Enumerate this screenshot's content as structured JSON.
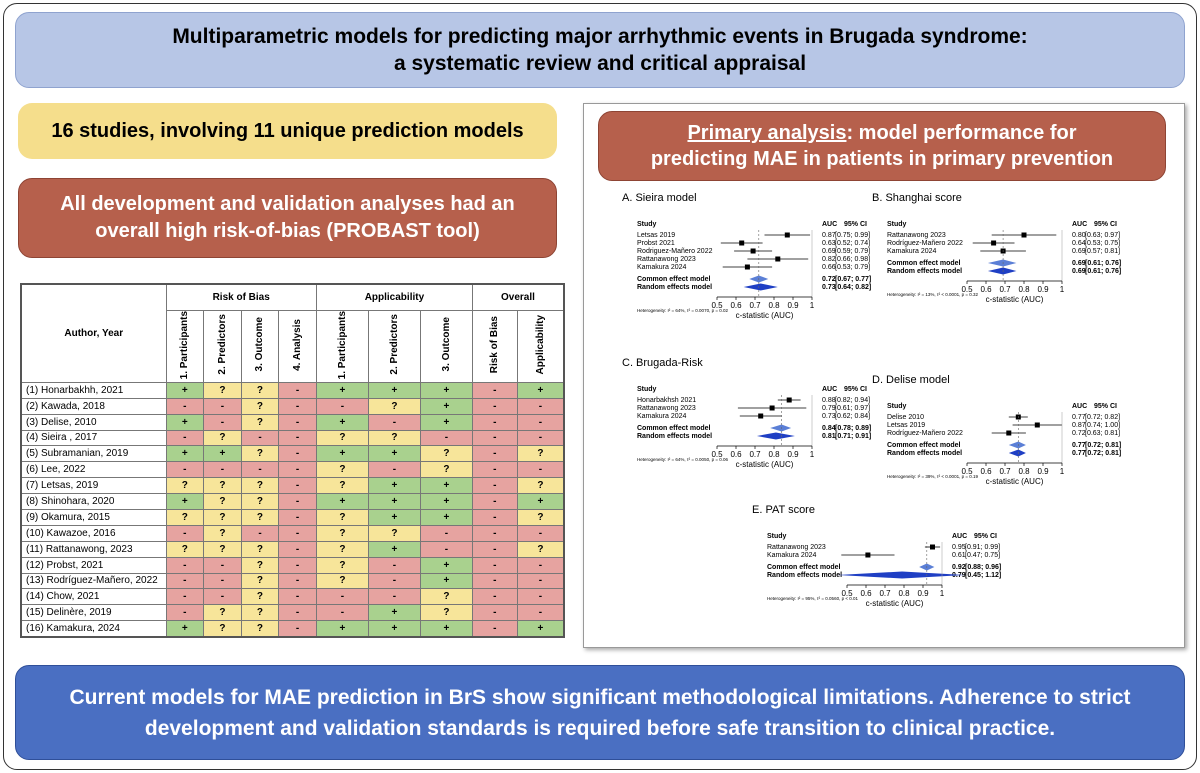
{
  "header": {
    "title_line1": "Multiparametric models for predicting major arrhythmic events in Brugada syndrome:",
    "title_line2": "a systematic review and critical appraisal"
  },
  "studies_box": "16 studies, involving 11 unique prediction models",
  "bias_box": "All development and validation analyses had an overall high risk-of-bias (PROBAST tool)",
  "table": {
    "author_header": "Author, Year",
    "groups": [
      "Risk of Bias",
      "Applicability",
      "Overall"
    ],
    "columns": [
      "1. Participants",
      "2. Predictors",
      "3. Outcome",
      "4. Analysis",
      "1. Participants",
      "2. Predictors",
      "3. Outcome",
      "Risk of Bias",
      "Applicability"
    ],
    "rows": [
      {
        "author": "(1) Honarbakhh, 2021",
        "cells": [
          "+",
          "?",
          "?",
          "-",
          "+",
          "+",
          "+",
          "-",
          "+"
        ]
      },
      {
        "author": "(2) Kawada, 2018",
        "cells": [
          "-",
          "-",
          "?",
          "-",
          "-",
          "?",
          "+",
          "-",
          "-"
        ]
      },
      {
        "author": "(3) Delise, 2010",
        "cells": [
          "+",
          "-",
          "?",
          "-",
          "+",
          "-",
          "+",
          "-",
          "-"
        ]
      },
      {
        "author": "(4) Sieira , 2017",
        "cells": [
          "-",
          "?",
          "-",
          "-",
          "?",
          "?",
          "-",
          "-",
          "-"
        ]
      },
      {
        "author": "(5) Subramanian, 2019",
        "cells": [
          "+",
          "+",
          "?",
          "-",
          "+",
          "+",
          "?",
          "-",
          "?"
        ]
      },
      {
        "author": "(6) Lee, 2022",
        "cells": [
          "-",
          "-",
          "-",
          "-",
          "?",
          "-",
          "?",
          "-",
          "-"
        ]
      },
      {
        "author": "(7) Letsas, 2019",
        "cells": [
          "?",
          "?",
          "?",
          "-",
          "?",
          "+",
          "+",
          "-",
          "?"
        ]
      },
      {
        "author": "(8) Shinohara, 2020",
        "cells": [
          "+",
          "?",
          "?",
          "-",
          "+",
          "+",
          "+",
          "-",
          "+"
        ]
      },
      {
        "author": "(9) Okamura, 2015",
        "cells": [
          "?",
          "?",
          "?",
          "-",
          "?",
          "+",
          "+",
          "-",
          "?"
        ]
      },
      {
        "author": "(10) Kawazoe, 2016",
        "cells": [
          "-",
          "?",
          "-",
          "-",
          "?",
          "?",
          "-",
          "-",
          "-"
        ]
      },
      {
        "author": "(11) Rattanawong, 2023",
        "cells": [
          "?",
          "?",
          "?",
          "-",
          "?",
          "+",
          "-",
          "-",
          "?"
        ]
      },
      {
        "author": "(12) Probst, 2021",
        "cells": [
          "-",
          "-",
          "?",
          "-",
          "?",
          "-",
          "+",
          "-",
          "-"
        ]
      },
      {
        "author": "(13) Rodríguez-Mañero, 2022",
        "cells": [
          "-",
          "-",
          "?",
          "-",
          "?",
          "-",
          "+",
          "-",
          "-"
        ]
      },
      {
        "author": "(14) Chow, 2021",
        "cells": [
          "-",
          "-",
          "?",
          "-",
          "-",
          "-",
          "?",
          "-",
          "-"
        ]
      },
      {
        "author": "(15) Delinère, 2019",
        "cells": [
          "-",
          "?",
          "?",
          "-",
          "-",
          "+",
          "?",
          "-",
          "-"
        ]
      },
      {
        "author": "(16) Kamakura, 2024",
        "cells": [
          "+",
          "?",
          "?",
          "-",
          "+",
          "+",
          "+",
          "-",
          "+"
        ]
      }
    ]
  },
  "primary": {
    "underlined": "Primary analysis",
    "rest": ": model performance for predicting MAE in patients in primary prevention"
  },
  "forest_axis": {
    "study_header": "Study",
    "auc_header": "AUC",
    "ci_header": "95% CI",
    "xlim": [
      0.5,
      1
    ],
    "xticks": [
      0.5,
      0.6,
      0.7,
      0.8,
      0.9,
      1
    ],
    "label": "c-statistic (AUC)"
  },
  "plots": [
    {
      "title": "A. Sieira model",
      "studies": [
        {
          "study": "Letsas 2019",
          "auc": 0.87,
          "ci_low": 0.75,
          "ci_high": 0.99,
          "ci_label": "[0.75; 0.99]"
        },
        {
          "study": "Probst 2021",
          "auc": 0.63,
          "ci_low": 0.52,
          "ci_high": 0.74,
          "ci_label": "[0.52; 0.74]"
        },
        {
          "study": "Rodriguez-Mañero 2022",
          "auc": 0.69,
          "ci_low": 0.59,
          "ci_high": 0.79,
          "ci_label": "[0.59; 0.79]"
        },
        {
          "study": "Rattanawong 2023",
          "auc": 0.82,
          "ci_low": 0.66,
          "ci_high": 0.98,
          "ci_label": "[0.66; 0.98]"
        },
        {
          "study": "Kamakura 2024",
          "auc": 0.66,
          "ci_low": 0.53,
          "ci_high": 0.79,
          "ci_label": "[0.53; 0.79]"
        }
      ],
      "pooled": [
        {
          "study": "Common effect model",
          "auc": 0.72,
          "ci_low": 0.67,
          "ci_high": 0.77,
          "ci_label": "[0.67; 0.77]"
        },
        {
          "study": "Random effects model",
          "auc": 0.73,
          "ci_low": 0.64,
          "ci_high": 0.82,
          "ci_label": "[0.64; 0.82]"
        }
      ],
      "heterogeneity": "Heterogeneity: I² = 64%, τ² = 0.0070, p = 0.02"
    },
    {
      "title": "B. Shanghai score",
      "studies": [
        {
          "study": "Rattanawong 2023",
          "auc": 0.8,
          "auc_label": "0.80",
          "ci_low": 0.63,
          "ci_high": 0.97,
          "ci_label": "[0.63; 0.97]"
        },
        {
          "study": "Rodríguez-Mañero 2022",
          "auc": 0.64,
          "ci_low": 0.53,
          "ci_high": 0.75,
          "ci_label": "[0.53; 0.75]"
        },
        {
          "study": "Kamakura 2024",
          "auc": 0.69,
          "ci_low": 0.57,
          "ci_high": 0.81,
          "ci_label": "[0.57; 0.81]"
        }
      ],
      "pooled": [
        {
          "study": "Common effect model",
          "auc": 0.69,
          "ci_low": 0.61,
          "ci_high": 0.76,
          "ci_label": "[0.61; 0.76]"
        },
        {
          "study": "Random effects model",
          "auc": 0.69,
          "ci_low": 0.61,
          "ci_high": 0.76,
          "ci_label": "[0.61; 0.76]"
        }
      ],
      "heterogeneity": "Heterogeneity: I² = 13%, τ² < 0.0001, p = 0.32"
    },
    {
      "title": "C. Brugada-Risk",
      "studies": [
        {
          "study": "Honarbakhsh 2021",
          "auc": 0.88,
          "ci_low": 0.82,
          "ci_high": 0.94,
          "ci_label": "[0.82; 0.94]"
        },
        {
          "study": "Rattanawong 2023",
          "auc": 0.79,
          "ci_low": 0.61,
          "ci_high": 0.97,
          "ci_label": "[0.61; 0.97]"
        },
        {
          "study": "Kamakura 2024",
          "auc": 0.73,
          "ci_low": 0.62,
          "ci_high": 0.84,
          "ci_label": "[0.62; 0.84]"
        }
      ],
      "pooled": [
        {
          "study": "Common effect model",
          "auc": 0.84,
          "ci_low": 0.78,
          "ci_high": 0.89,
          "ci_label": "[0.78; 0.89]"
        },
        {
          "study": "Random effects model",
          "auc": 0.81,
          "ci_low": 0.71,
          "ci_high": 0.91,
          "ci_label": "[0.71; 0.91]"
        }
      ],
      "heterogeneity": "Heterogeneity: I² = 64%, τ² = 0.0050, p = 0.06"
    },
    {
      "title": "D. Delise model",
      "studies": [
        {
          "study": "Delise 2010",
          "auc": 0.77,
          "ci_low": 0.72,
          "ci_high": 0.82,
          "ci_label": "[0.72; 0.82]"
        },
        {
          "study": "Letsas 2019",
          "auc": 0.87,
          "ci_low": 0.74,
          "ci_high": 1,
          "ci_label": "[0.74; 1.00]"
        },
        {
          "study": "Rodríguez-Mañero 2022",
          "auc": 0.72,
          "ci_low": 0.63,
          "ci_high": 0.81,
          "ci_label": "[0.63; 0.81]"
        }
      ],
      "pooled": [
        {
          "study": "Common effect model",
          "auc": 0.77,
          "ci_low": 0.72,
          "ci_high": 0.81,
          "ci_label": "[0.72; 0.81]"
        },
        {
          "study": "Random effects model",
          "auc": 0.77,
          "ci_low": 0.72,
          "ci_high": 0.81,
          "ci_label": "[0.72; 0.81]"
        }
      ],
      "heterogeneity": "Heterogeneity: I² = 39%, τ² < 0.0001, p = 0.19"
    },
    {
      "title": "E. PAT score",
      "studies": [
        {
          "study": "Rattanawong 2023",
          "auc": 0.95,
          "ci_low": 0.91,
          "ci_high": 0.99,
          "ci_label": "[0.91; 0.99]"
        },
        {
          "study": "Kamakura 2024",
          "auc": 0.61,
          "ci_low": 0.47,
          "ci_high": 0.75,
          "ci_label": "[0.47; 0.75]"
        }
      ],
      "pooled": [
        {
          "study": "Common effect model",
          "auc": 0.92,
          "ci_low": 0.88,
          "ci_high": 0.96,
          "ci_label": "[0.88; 0.96]"
        },
        {
          "study": "Random effects model",
          "auc": 0.79,
          "ci_low": 0.45,
          "ci_high": 1.12,
          "ci_label": "[0.45; 1.12]"
        }
      ],
      "heterogeneity": "Heterogeneity: I² = 95%, τ² = 0.0560, p < 0.01"
    }
  ],
  "conclusion": "Current models for MAE prediction in BrS show significant methodological limitations. Adherence to strict development and validation standards is required before safe transition to clinical practice."
}
